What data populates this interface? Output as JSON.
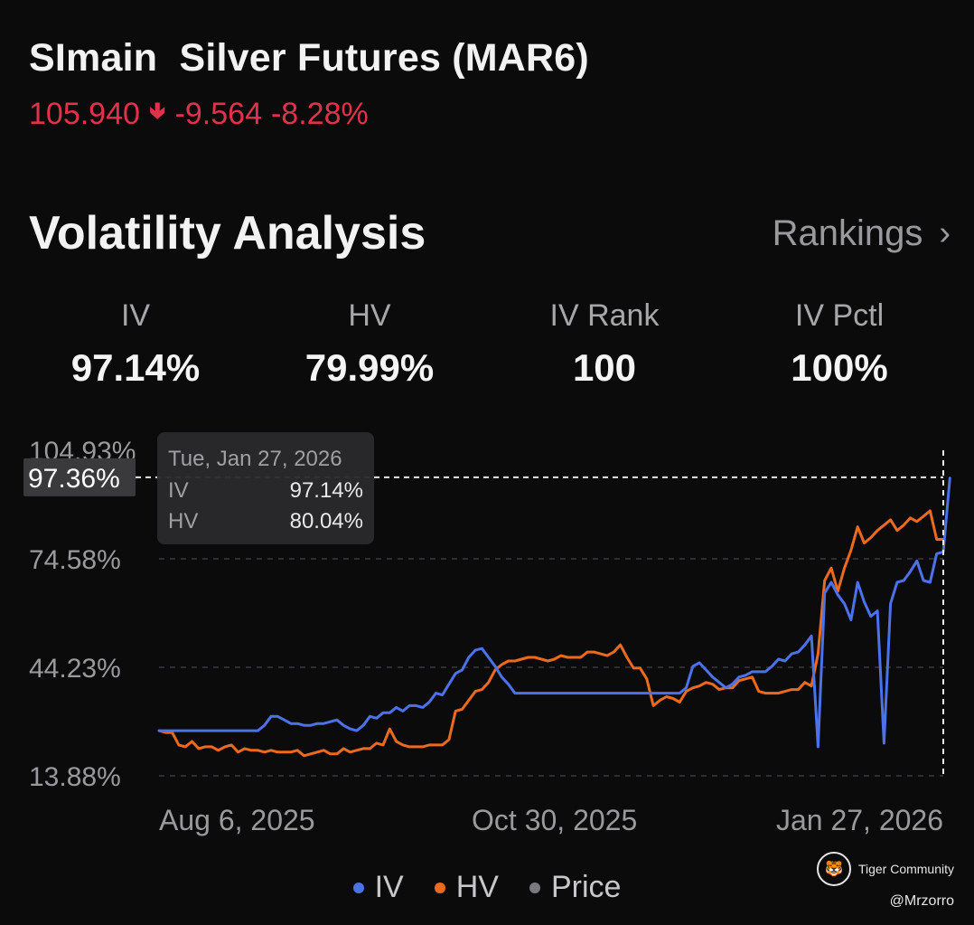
{
  "header": {
    "symbol": "SImain",
    "name": "Silver Futures (MAR6)",
    "price": "105.940",
    "change_icon": "down-arrow-icon",
    "change": "-9.564",
    "change_pct": "-8.28%"
  },
  "section": {
    "title": "Volatility Analysis",
    "rankings_label": "Rankings"
  },
  "metrics": [
    {
      "label": "IV",
      "value": "97.14%"
    },
    {
      "label": "HV",
      "value": "79.99%"
    },
    {
      "label": "IV Rank",
      "value": "100"
    },
    {
      "label": "IV Pctl",
      "value": "100%"
    }
  ],
  "tooltip": {
    "date": "Tue, Jan 27, 2026",
    "rows": [
      {
        "label": "IV",
        "value": "97.14%"
      },
      {
        "label": "HV",
        "value": "80.04%"
      }
    ],
    "crosshair_label": "97.36%"
  },
  "legend": [
    {
      "label": "IV",
      "color": "#4b72e8"
    },
    {
      "label": "HV",
      "color": "#ea6a1f"
    },
    {
      "label": "Price",
      "color": "#7a7a7e"
    }
  ],
  "branding": {
    "community": "Tiger Community",
    "handle": "@Mrzorro"
  },
  "colors": {
    "up": "#26a65b",
    "down": "#e0334a",
    "iv": "#4b72e8",
    "hv": "#ea6a1f",
    "grid": "#3a3a3e"
  },
  "chart_data": {
    "type": "line",
    "title": "Volatility Analysis",
    "ylim": [
      13.88,
      104.93
    ],
    "yticks": [
      "104.93%",
      "74.58%",
      "44.23%",
      "13.88%"
    ],
    "ytick_values": [
      104.93,
      74.58,
      44.23,
      13.88
    ],
    "xticks": [
      "Aug 6, 2025",
      "Oct 30, 2025",
      "Jan 27, 2026"
    ],
    "xtick_index": [
      0,
      60,
      119
    ],
    "n_points": 120,
    "crosshair_value": 97.36,
    "series": [
      {
        "name": "IV",
        "values": [
          26.5,
          26.5,
          26.5,
          26.5,
          26.5,
          26.5,
          26.5,
          26.5,
          26.5,
          26.5,
          26.5,
          26.5,
          26.5,
          26.5,
          26.5,
          26.5,
          28.0,
          30.5,
          30.5,
          29.5,
          28.5,
          28.5,
          28.0,
          28.0,
          28.5,
          28.5,
          29.0,
          29.5,
          28.0,
          27.0,
          26.5,
          28.0,
          30.5,
          30.0,
          31.5,
          31.5,
          33.0,
          32.0,
          33.5,
          33.5,
          33.0,
          34.5,
          37.0,
          36.5,
          39.5,
          42.5,
          43.5,
          47.0,
          49.0,
          49.5,
          47.0,
          44.5,
          41.5,
          39.5,
          37.0,
          37.0,
          37.0,
          37.0,
          37.0,
          37.0,
          37.0,
          37.0,
          37.0,
          37.0,
          37.0,
          37.0,
          37.0,
          37.0,
          37.0,
          37.0,
          37.0,
          37.0,
          37.0,
          37.0,
          37.0,
          37.0,
          37.0,
          37.0,
          37.0,
          37.0,
          38.5,
          44.5,
          45.5,
          43.5,
          41.5,
          40.0,
          38.5,
          39.5,
          41.5,
          42.0,
          43.0,
          43.0,
          43.0,
          44.5,
          46.5,
          46.0,
          48.0,
          48.5,
          50.5,
          53.0,
          22.0,
          65.0,
          68.0,
          64.5,
          62.0,
          57.5,
          68.0,
          62.5,
          58.5,
          60.0,
          23.0,
          62.0,
          68.0,
          68.5,
          71.0,
          74.0,
          68.5,
          68.0,
          76.0,
          76.5,
          97.14
        ]
      },
      {
        "name": "HV",
        "values": [
          26.5,
          26.0,
          26.0,
          22.5,
          22.0,
          23.5,
          21.5,
          22.0,
          22.0,
          21.0,
          22.0,
          22.5,
          20.5,
          21.5,
          21.0,
          21.0,
          20.5,
          21.0,
          20.5,
          20.5,
          20.5,
          21.0,
          19.5,
          20.0,
          20.5,
          21.0,
          20.0,
          20.0,
          21.5,
          20.5,
          21.0,
          21.5,
          21.5,
          23.0,
          22.5,
          27.0,
          23.5,
          22.5,
          22.0,
          22.0,
          22.0,
          22.5,
          22.5,
          22.5,
          24.0,
          32.0,
          32.5,
          35.0,
          37.5,
          38.0,
          40.0,
          43.5,
          45.0,
          46.0,
          46.0,
          46.5,
          47.0,
          47.0,
          46.5,
          46.0,
          46.5,
          47.5,
          47.0,
          47.0,
          47.0,
          48.5,
          48.5,
          48.0,
          47.5,
          48.5,
          50.5,
          47.0,
          44.0,
          44.0,
          41.0,
          33.5,
          35.0,
          36.0,
          35.5,
          34.5,
          37.5,
          38.5,
          39.0,
          40.0,
          39.5,
          38.0,
          38.5,
          38.5,
          40.5,
          41.0,
          41.5,
          37.5,
          37.0,
          37.0,
          37.0,
          37.5,
          38.0,
          38.0,
          40.0,
          39.0,
          48.0,
          68.5,
          72.0,
          65.5,
          72.0,
          77.0,
          83.5,
          79.0,
          80.5,
          82.5,
          84.0,
          85.5,
          82.5,
          84.0,
          86.0,
          85.0,
          86.5,
          88.0,
          80.0,
          80.04
        ]
      }
    ]
  }
}
